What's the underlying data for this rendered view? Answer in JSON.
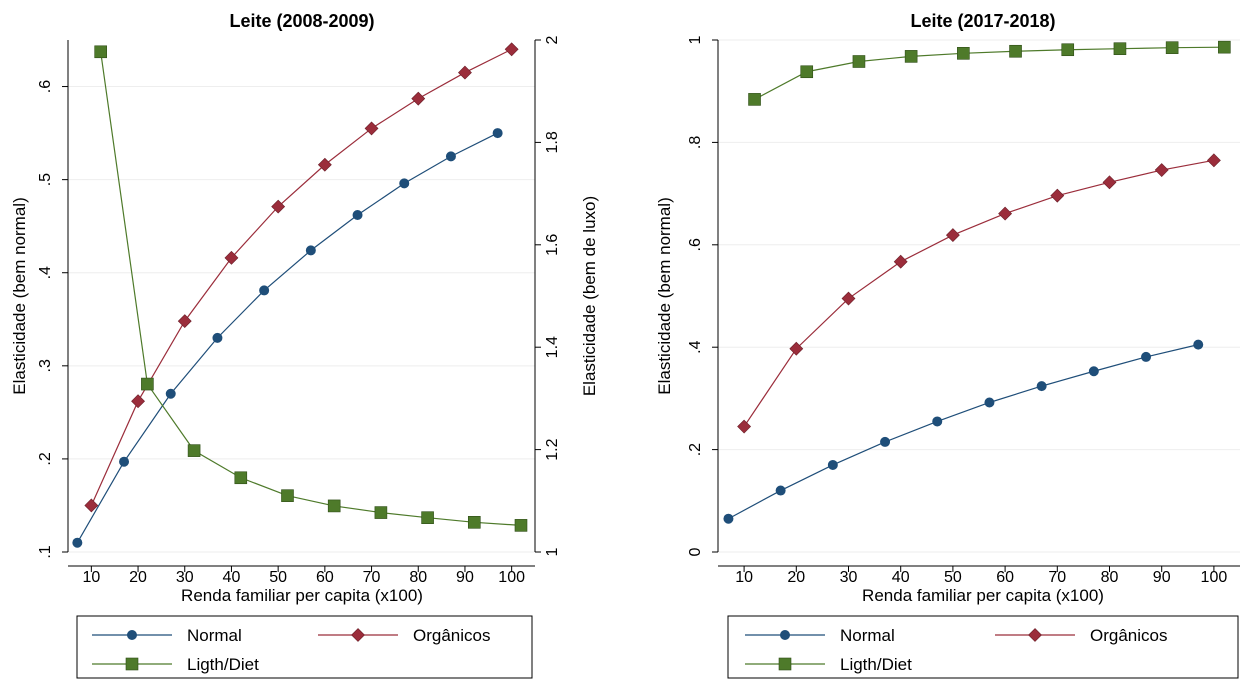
{
  "colors": {
    "normal": "#1f4e79",
    "organicos": "#9b2d3b",
    "ligth": "#4e7a2a"
  },
  "chart_data": [
    {
      "type": "line",
      "title": "Leite (2008-2009)",
      "xlabel": "Renda familiar per capita (x100)",
      "ylabel": "Elasticidade (bem normal)",
      "y2label": "Elasticidade (bem de luxo)",
      "xlim": [
        5,
        105
      ],
      "ylim": [
        0.1,
        0.65
      ],
      "y2lim": [
        1.0,
        2.0
      ],
      "xticks": [
        10,
        20,
        30,
        40,
        50,
        60,
        70,
        80,
        90,
        100
      ],
      "yticks": [
        0.1,
        0.2,
        0.3,
        0.4,
        0.5,
        0.6
      ],
      "ytick_labels": [
        ".1",
        ".2",
        ".3",
        ".4",
        ".5",
        ".6"
      ],
      "y2ticks": [
        1.0,
        1.2,
        1.4,
        1.6,
        1.8,
        2.0
      ],
      "y2tick_labels": [
        "1",
        "1.2",
        "1.4",
        "1.6",
        "1.8",
        "2"
      ],
      "grid": true,
      "legend_position": "bottom",
      "series": [
        {
          "name": "Normal",
          "key": "normal",
          "marker": "circle",
          "axis": "left",
          "x": [
            7,
            17,
            27,
            37,
            47,
            57,
            67,
            77,
            87,
            97
          ],
          "values": [
            0.11,
            0.197,
            0.27,
            0.33,
            0.381,
            0.424,
            0.462,
            0.496,
            0.525,
            0.55
          ]
        },
        {
          "name": "Orgânicos",
          "key": "organicos",
          "marker": "diamond",
          "axis": "left",
          "x": [
            10,
            20,
            30,
            40,
            50,
            60,
            70,
            80,
            90,
            100
          ],
          "values": [
            0.15,
            0.262,
            0.348,
            0.416,
            0.471,
            0.516,
            0.555,
            0.587,
            0.615,
            0.64
          ]
        },
        {
          "name": "Ligth/Diet",
          "key": "ligth",
          "marker": "square",
          "axis": "right",
          "x": [
            12,
            22,
            32,
            42,
            52,
            62,
            72,
            82,
            92,
            102
          ],
          "values": [
            1.977,
            1.328,
            1.198,
            1.145,
            1.11,
            1.09,
            1.077,
            1.067,
            1.058,
            1.052
          ]
        }
      ]
    },
    {
      "type": "line",
      "title": "Leite (2017-2018)",
      "xlabel": "Renda familiar per capita (x100)",
      "ylabel": "Elasticidade (bem normal)",
      "xlim": [
        5,
        105
      ],
      "ylim": [
        0.0,
        1.0
      ],
      "xticks": [
        10,
        20,
        30,
        40,
        50,
        60,
        70,
        80,
        90,
        100
      ],
      "yticks": [
        0,
        0.2,
        0.4,
        0.6,
        0.8,
        1.0
      ],
      "ytick_labels": [
        "0",
        ".2",
        ".4",
        ".6",
        ".8",
        "1"
      ],
      "grid": true,
      "legend_position": "bottom",
      "series": [
        {
          "name": "Normal",
          "key": "normal",
          "marker": "circle",
          "axis": "left",
          "x": [
            7,
            17,
            27,
            37,
            47,
            57,
            67,
            77,
            87,
            97
          ],
          "values": [
            0.065,
            0.12,
            0.17,
            0.215,
            0.255,
            0.292,
            0.324,
            0.353,
            0.381,
            0.405
          ]
        },
        {
          "name": "Orgânicos",
          "key": "organicos",
          "marker": "diamond",
          "axis": "left",
          "x": [
            10,
            20,
            30,
            40,
            50,
            60,
            70,
            80,
            90,
            100
          ],
          "values": [
            0.245,
            0.397,
            0.495,
            0.567,
            0.619,
            0.661,
            0.696,
            0.722,
            0.746,
            0.765
          ]
        },
        {
          "name": "Ligth/Diet",
          "key": "ligth",
          "marker": "square",
          "axis": "left",
          "x": [
            12,
            22,
            32,
            42,
            52,
            62,
            72,
            82,
            92,
            102
          ],
          "values": [
            0.884,
            0.938,
            0.958,
            0.968,
            0.974,
            0.978,
            0.981,
            0.983,
            0.985,
            0.986
          ]
        }
      ]
    }
  ]
}
